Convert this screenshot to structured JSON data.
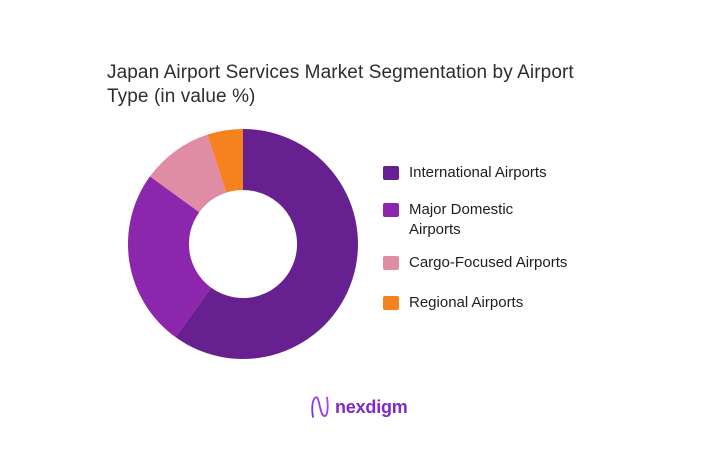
{
  "header": {
    "title": "Japan Airport Services Market Segmentation by Airport\nType (in value %)"
  },
  "chart_data": {
    "type": "pie",
    "variant": "donut",
    "title": "Japan Airport Services Market Segmentation by Airport Type (in value %)",
    "categories": [
      "International Airports",
      "Major Domestic Airports",
      "Cargo-Focused Airports",
      "Regional Airports"
    ],
    "values": [
      60,
      25,
      10,
      5
    ],
    "unit": "value %",
    "colors": [
      "#67208F",
      "#8C26AC",
      "#E08CA4",
      "#F5821E"
    ],
    "start_angle_deg": 0,
    "direction": "clockwise",
    "donut_hole_ratio": 0.47,
    "legend_position": "right",
    "legend_labels": [
      "International Airports",
      "Major Domestic\nAirports",
      "Cargo-Focused Airports",
      "Regional Airports"
    ]
  },
  "branding": {
    "logo_text": "nexdigm",
    "logo_mark": "n-wave-icon",
    "logo_text_color": "#8128C8",
    "logo_gradient": [
      "#6A35EE",
      "#C73BF0"
    ]
  }
}
